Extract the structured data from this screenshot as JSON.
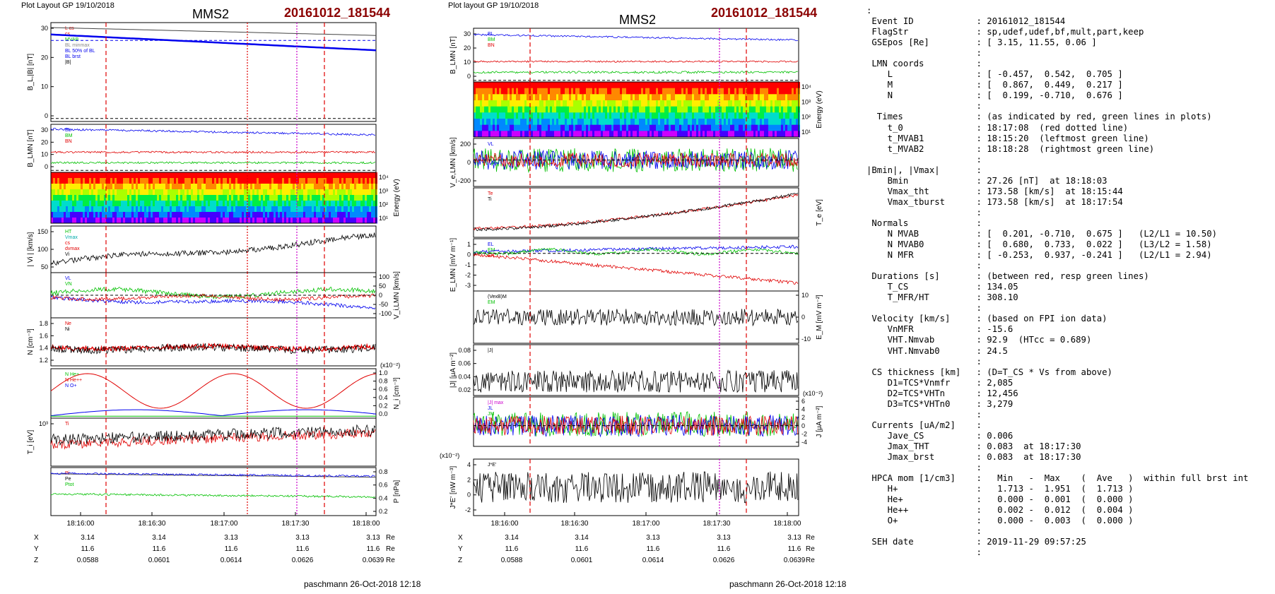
{
  "header": {
    "left_layout_label": "Plot Layout GP 19/10/2018",
    "right_layout_label": "Plot layout GP 19/10/2018",
    "spacecraft": "MMS2",
    "event": "20161012_181544",
    "footer": "paschmann 26-Oct-2018 12:18"
  },
  "colors": {
    "red": "#e00000",
    "green": "#00c000",
    "blue": "#0000ee",
    "magenta": "#cc00cc",
    "black": "#000000",
    "event": "#8b0000"
  },
  "chart_data": [
    {
      "type": "line",
      "name": "left-column",
      "time_ticks": [
        "18:16:00",
        "18:16:30",
        "18:17:00",
        "18:17:30",
        "18:18:00"
      ],
      "markers": [
        "red-dashed",
        "red-dotted",
        "magenta-dotted",
        "red-dashed"
      ],
      "panels": [
        {
          "id": "B",
          "ylabel": "B_L,|B| [nT]",
          "yticks_left": [
            "30",
            "20",
            "10",
            "0"
          ],
          "legend": [
            "L cs",
            "cs",
            "MVAB",
            "BL minmax",
            "BL 50% of BL",
            "BL brst",
            "|B|"
          ]
        },
        {
          "id": "BLMN",
          "ylabel": "B_LMN [nT]",
          "yticks_left": [
            "30",
            "20",
            "10",
            "0"
          ],
          "legend": [
            "BL",
            "BM",
            "BN"
          ]
        },
        {
          "id": "spec",
          "type": "heatmap",
          "yticks_right": [
            "10⁴",
            "10³",
            "10²",
            "10¹"
          ],
          "ylabel_right": "Energy (eV)"
        },
        {
          "id": "Vi",
          "ylabel": "| Vi | [km/s]",
          "yticks_left": [
            "150",
            "100",
            "50"
          ],
          "legend": [
            "HT",
            "Vmax",
            "cs",
            "dvmax",
            "Vi"
          ]
        },
        {
          "id": "ViLMN",
          "ylabel_right": "V_i,LMN [km/s]",
          "yticks_right": [
            "100",
            "50",
            "0",
            "-50",
            "-100"
          ],
          "legend": [
            "VL",
            "VN"
          ]
        },
        {
          "id": "N",
          "ylabel": "N [cm⁻³]",
          "yticks_left": [
            "1.8",
            "1.6",
            "1.4",
            "1.2"
          ],
          "legend": [
            "Ne",
            "Ni"
          ]
        },
        {
          "id": "NHpca",
          "ylabel_right": "N_i [cm⁻³]",
          "scale_label": "(x10⁻²)",
          "yticks_right": [
            "1.0",
            "0.8",
            "0.6",
            "0.4",
            "0.2",
            "0.0"
          ],
          "legend": [
            "N He+",
            "N He++",
            "N O+"
          ]
        },
        {
          "id": "Ti",
          "ylabel": "T_i [eV]",
          "yticks_left": [
            "10³"
          ],
          "legend": [
            "Ti"
          ]
        },
        {
          "id": "P",
          "ylabel_right": "P [nPa]",
          "yticks_right": [
            "0.8",
            "0.6",
            "0.4",
            "0.2"
          ],
          "legend": [
            "Pi",
            "Pe",
            "Ptot"
          ]
        }
      ],
      "position_table": {
        "rows": [
          {
            "label": "X",
            "values": [
              "3.14",
              "3.14",
              "3.13",
              "3.13",
              "3.13"
            ],
            "unit": "Re"
          },
          {
            "label": "Y",
            "values": [
              "11.6",
              "11.6",
              "11.6",
              "11.6",
              "11.6"
            ],
            "unit": "Re"
          },
          {
            "label": "Z",
            "values": [
              "0.0588",
              "0.0601",
              "0.0614",
              "0.0626",
              "0.0639"
            ],
            "unit": "Re"
          }
        ]
      }
    },
    {
      "type": "line",
      "name": "right-column",
      "time_ticks": [
        "18:16:00",
        "18:16:30",
        "18:17:00",
        "18:17:30",
        "18:18:00"
      ],
      "markers": [
        "red-dashed",
        "magenta-dotted",
        "red-dashed"
      ],
      "panels": [
        {
          "id": "BLMN",
          "ylabel": "B_LMN [nT]",
          "yticks_left": [
            "30",
            "20",
            "10",
            "0"
          ],
          "legend": [
            "BL",
            "BM",
            "BN"
          ]
        },
        {
          "id": "spec",
          "type": "heatmap",
          "yticks_right": [
            "10⁴",
            "10³",
            "10²",
            "10¹"
          ],
          "ylabel_right": "Energy (eV)"
        },
        {
          "id": "Ve",
          "ylabel": "V_e,LMN [km/s]",
          "yticks_left": [
            "200",
            "0",
            "-200"
          ],
          "legend": [
            "VL"
          ]
        },
        {
          "id": "T",
          "ylabel_right": "T_e [eV]",
          "legend": [
            "Te",
            "Ti"
          ]
        },
        {
          "id": "E",
          "ylabel": "E_LMN [mV m⁻¹]",
          "yticks_left": [
            "1",
            "0",
            "-1",
            "-2",
            "-3"
          ],
          "legend": [
            "EL",
            "EM",
            "EN"
          ]
        },
        {
          "id": "EM",
          "ylabel_right": "E_M [mV m⁻²]",
          "yticks_right": [
            "10",
            "0",
            "-10"
          ],
          "legend": [
            "(VexB)M",
            "EM"
          ]
        },
        {
          "id": "J",
          "ylabel": "|J| [μA m⁻²]",
          "yticks_left": [
            "0.08",
            "0.06",
            "0.04",
            "0.02"
          ],
          "legend": [
            "|J|"
          ]
        },
        {
          "id": "JLMN",
          "ylabel_right": "J [μA m⁻²]",
          "scale_label": "(x10⁻²)",
          "yticks_right": [
            "6",
            "4",
            "2",
            "0",
            "-2",
            "-4"
          ],
          "legend": [
            "|J| max",
            "JL",
            "JM",
            "JN"
          ]
        },
        {
          "id": "JE",
          "ylabel": "J*E' [nW m⁻³]",
          "scale_label": "(x10⁻²)",
          "yticks_left": [
            "4",
            "2",
            "0",
            "-2"
          ],
          "legend": [
            "J*E'"
          ]
        }
      ],
      "position_table": {
        "rows": [
          {
            "label": "X",
            "values": [
              "3.14",
              "3.14",
              "3.13",
              "3.13",
              "3.13"
            ],
            "unit": "Re"
          },
          {
            "label": "Y",
            "values": [
              "11.6",
              "11.6",
              "11.6",
              "11.6",
              "11.6"
            ],
            "unit": "Re"
          },
          {
            "label": "Z",
            "values": [
              "0.0588",
              "0.0601",
              "0.0614",
              "0.0626",
              "0.0639"
            ],
            "unit": "Re"
          }
        ]
      }
    }
  ],
  "info": {
    "lines": [
      ":",
      " Event ID            : 20161012_181544",
      " FlagStr             : sp,udef,udef,bf,mult,part,keep",
      " GSEpos [Re]         : [ 3.15, 11.55, 0.06 ]",
      "                     :",
      " LMN coords          :",
      "    L                : [ -0.457,  0.542,  0.705 ]",
      "    M                : [  0.867,  0.449,  0.217 ]",
      "    N                : [  0.199, -0.710,  0.676 ]",
      "                     :",
      "  Times              : (as indicated by red, green lines in plots)",
      "    t_0              : 18:17:08  (red dotted line)",
      "    t_MVAB1          : 18:15:20  (leftmost green line)",
      "    t_MVAB2          : 18:18:28  (rightmost green line)",
      "                     :",
      "|Bmin|, |Vmax|       :",
      "    Bmin             : 27.26 [nT]  at 18:18:03",
      "    Vmax_tht         : 173.58 [km/s]  at 18:15:44",
      "    Vmax_tburst      : 173.58 [km/s]  at 18:17:54",
      "                     :",
      " Normals             :",
      "    N MVAB           : [  0.201, -0.710,  0.675 ]   (L2/L1 = 10.50)",
      "    N MVAB0          : [  0.680,  0.733,  0.022 ]   (L3/L2 = 1.58)",
      "    N MFR            : [ -0.253,  0.937, -0.241 ]   (L2/L1 = 2.94)",
      "                     :",
      " Durations [s]       : (between red, resp green lines)",
      "    T_CS             : 134.05",
      "    T_MFR/HT         : 308.10",
      "                     :",
      " Velocity [km/s]     : (based on FPI ion data)",
      "    VnMFR            : -15.6",
      "    VHT.Nmvab        : 92.9  (HTcc = 0.689)",
      "    VHT.Nmvab0       : 24.5",
      "                     :",
      " CS thickness [km]   : (D=T_CS * Vs from above)",
      "    D1=TCS*Vnmfr     : 2,085",
      "    D2=TCS*VHTn      : 12,456",
      "    D3=TCS*VHTn0     : 3,279",
      "                     :",
      " Currents [uA/m2]    :",
      "    Jave_CS          : 0.006",
      "    Jmax_THT         : 0.083  at 18:17:30",
      "    Jmax_brst        : 0.083  at 18:17:30",
      "                     :",
      " HPCA mom [1/cm3]    :   Min   -  Max    (  Ave   )  within full brst int",
      "    H+               :   1.713 -  1.951  (  1.713 )",
      "    He+              :   0.000 -  0.001  (  0.000 )",
      "    He++             :   0.002 -  0.012  (  0.004 )",
      "    O+               :   0.000 -  0.003  (  0.000 )",
      "                     :",
      " SEH date            : 2019-11-29 09:57:25",
      "                     :"
    ]
  }
}
